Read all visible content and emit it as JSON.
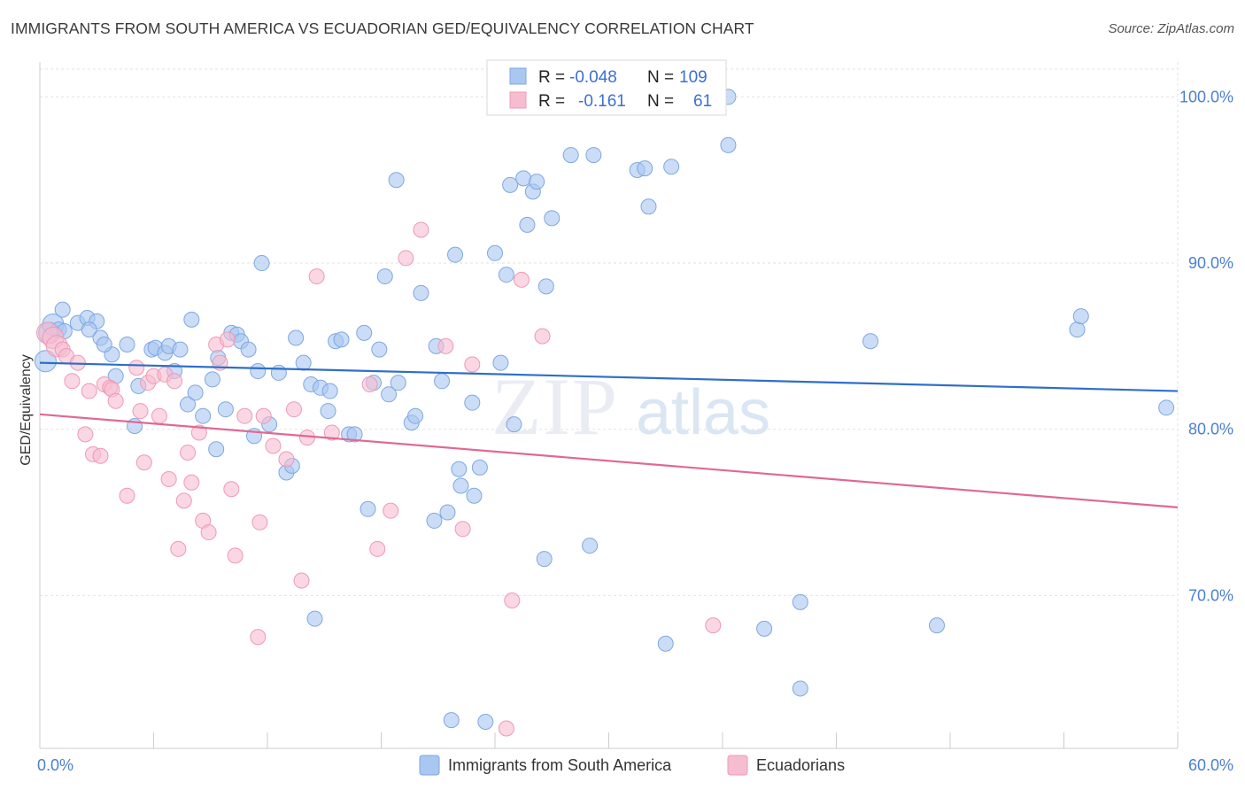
{
  "title": "IMMIGRANTS FROM SOUTH AMERICA VS ECUADORIAN GED/EQUIVALENCY CORRELATION CHART",
  "source": "Source: ZipAtlas.com",
  "watermark": {
    "zip": "ZIP",
    "atlas": "atlas"
  },
  "colors": {
    "blue": "#a9c7f0",
    "blue_stroke": "#7ea7e3",
    "blue_line": "#2f6ec9",
    "pink": "#f6bdd0",
    "pink_stroke": "#ee99b6",
    "pink_line": "#e06893",
    "tick_text": "#4a7fd0",
    "grid": "#e2e2e2"
  },
  "legend": {
    "rows": [
      {
        "r_label": "R =",
        "r_value": "-0.048",
        "n_label": "N =",
        "n_value": "109"
      },
      {
        "r_label": "R =",
        "r_value": "-0.161",
        "n_label": "N =",
        "n_value": "61"
      }
    ]
  },
  "chart_data": {
    "type": "scatter",
    "title": "IMMIGRANTS FROM SOUTH AMERICA VS ECUADORIAN GED/EQUIVALENCY CORRELATION CHART",
    "xlabel": "",
    "ylabel": "GED/Equivalency",
    "xlim": [
      0,
      60
    ],
    "ylim": [
      60.8,
      102.1
    ],
    "x_tick_labels": [
      "0.0%",
      "60.0%"
    ],
    "y_tick_labels": [
      "70.0%",
      "80.0%",
      "90.0%",
      "100.0%"
    ],
    "y_ticks": [
      70,
      80,
      90,
      100
    ],
    "grid": true,
    "legend_position": "top-center",
    "series": [
      {
        "name": "Immigrants from South America",
        "color": "#a9c7f0",
        "trend": {
          "x": [
            0,
            60
          ],
          "y": [
            84.0,
            82.3
          ]
        },
        "points": [
          [
            0.3,
            84.1
          ],
          [
            0.5,
            85.8
          ],
          [
            0.7,
            86.3
          ],
          [
            1.0,
            86.0
          ],
          [
            1.2,
            87.2
          ],
          [
            1.3,
            85.9
          ],
          [
            2.0,
            86.4
          ],
          [
            2.5,
            86.7
          ],
          [
            3.0,
            86.5
          ],
          [
            2.6,
            86.0
          ],
          [
            3.2,
            85.5
          ],
          [
            3.8,
            84.5
          ],
          [
            3.4,
            85.1
          ],
          [
            4.6,
            85.1
          ],
          [
            4.0,
            83.2
          ],
          [
            5.2,
            82.6
          ],
          [
            5.0,
            80.2
          ],
          [
            5.9,
            84.8
          ],
          [
            6.1,
            84.9
          ],
          [
            6.6,
            84.6
          ],
          [
            6.8,
            85.0
          ],
          [
            7.4,
            84.8
          ],
          [
            7.1,
            83.5
          ],
          [
            7.8,
            81.5
          ],
          [
            8.0,
            86.6
          ],
          [
            8.2,
            82.2
          ],
          [
            8.6,
            80.8
          ],
          [
            9.1,
            83.0
          ],
          [
            9.3,
            78.8
          ],
          [
            9.4,
            84.3
          ],
          [
            9.8,
            81.2
          ],
          [
            10.1,
            85.8
          ],
          [
            10.4,
            85.7
          ],
          [
            10.6,
            85.3
          ],
          [
            11.0,
            84.8
          ],
          [
            11.3,
            79.6
          ],
          [
            11.5,
            83.5
          ],
          [
            11.7,
            90.0
          ],
          [
            12.1,
            80.3
          ],
          [
            12.6,
            83.4
          ],
          [
            13.0,
            77.4
          ],
          [
            13.3,
            77.8
          ],
          [
            13.5,
            85.5
          ],
          [
            13.9,
            84.0
          ],
          [
            14.3,
            82.7
          ],
          [
            14.5,
            68.6
          ],
          [
            14.8,
            82.5
          ],
          [
            15.2,
            81.1
          ],
          [
            15.3,
            82.3
          ],
          [
            15.6,
            85.3
          ],
          [
            15.9,
            85.4
          ],
          [
            16.3,
            79.7
          ],
          [
            16.6,
            79.7
          ],
          [
            17.1,
            85.8
          ],
          [
            17.3,
            75.2
          ],
          [
            17.6,
            82.8
          ],
          [
            17.9,
            84.8
          ],
          [
            18.2,
            89.2
          ],
          [
            18.4,
            82.1
          ],
          [
            18.8,
            95.0
          ],
          [
            18.9,
            82.8
          ],
          [
            19.6,
            80.4
          ],
          [
            19.8,
            80.8
          ],
          [
            20.1,
            88.2
          ],
          [
            20.8,
            74.5
          ],
          [
            20.9,
            85.0
          ],
          [
            21.2,
            82.9
          ],
          [
            21.5,
            75.0
          ],
          [
            21.7,
            62.5
          ],
          [
            21.9,
            90.5
          ],
          [
            22.1,
            77.6
          ],
          [
            22.2,
            76.6
          ],
          [
            22.8,
            81.6
          ],
          [
            22.9,
            76.0
          ],
          [
            23.2,
            77.7
          ],
          [
            23.5,
            62.4
          ],
          [
            24.0,
            90.6
          ],
          [
            24.3,
            84.0
          ],
          [
            24.6,
            89.3
          ],
          [
            24.8,
            94.7
          ],
          [
            25.0,
            80.3
          ],
          [
            25.5,
            95.1
          ],
          [
            25.7,
            92.3
          ],
          [
            26.0,
            94.3
          ],
          [
            26.2,
            94.9
          ],
          [
            26.6,
            72.2
          ],
          [
            26.7,
            88.6
          ],
          [
            27.0,
            92.7
          ],
          [
            28.0,
            96.5
          ],
          [
            29.0,
            73.0
          ],
          [
            29.2,
            96.5
          ],
          [
            31.5,
            95.6
          ],
          [
            31.9,
            95.7
          ],
          [
            32.1,
            93.4
          ],
          [
            33.0,
            67.1
          ],
          [
            33.3,
            95.8
          ],
          [
            36.3,
            100.0
          ],
          [
            36.3,
            97.1
          ],
          [
            38.2,
            68.0
          ],
          [
            40.1,
            64.4
          ],
          [
            40.1,
            69.6
          ],
          [
            43.8,
            85.3
          ],
          [
            47.3,
            68.2
          ],
          [
            54.7,
            86.0
          ],
          [
            54.9,
            86.8
          ],
          [
            59.4,
            81.3
          ]
        ]
      },
      {
        "name": "Ecuadorians",
        "color": "#f6bdd0",
        "trend": {
          "x": [
            0,
            60
          ],
          "y": [
            80.9,
            75.3
          ]
        },
        "points": [
          [
            0.4,
            85.8
          ],
          [
            0.7,
            85.5
          ],
          [
            0.9,
            85.0
          ],
          [
            1.2,
            84.8
          ],
          [
            1.4,
            84.4
          ],
          [
            1.7,
            82.9
          ],
          [
            2.0,
            84.0
          ],
          [
            2.4,
            79.7
          ],
          [
            2.6,
            82.3
          ],
          [
            2.8,
            78.5
          ],
          [
            3.2,
            78.4
          ],
          [
            3.4,
            82.7
          ],
          [
            3.7,
            82.5
          ],
          [
            3.8,
            82.4
          ],
          [
            4.0,
            81.7
          ],
          [
            4.6,
            76.0
          ],
          [
            5.1,
            83.7
          ],
          [
            5.3,
            81.1
          ],
          [
            5.5,
            78.0
          ],
          [
            5.7,
            82.8
          ],
          [
            6.0,
            83.2
          ],
          [
            6.3,
            80.8
          ],
          [
            6.6,
            83.3
          ],
          [
            6.8,
            77.0
          ],
          [
            7.1,
            82.9
          ],
          [
            7.3,
            72.8
          ],
          [
            7.6,
            75.7
          ],
          [
            7.8,
            78.6
          ],
          [
            8.0,
            76.8
          ],
          [
            8.4,
            79.8
          ],
          [
            8.6,
            74.5
          ],
          [
            8.9,
            73.8
          ],
          [
            9.3,
            85.1
          ],
          [
            9.5,
            84.0
          ],
          [
            9.9,
            85.4
          ],
          [
            10.1,
            76.4
          ],
          [
            10.3,
            72.4
          ],
          [
            10.8,
            80.8
          ],
          [
            11.5,
            67.5
          ],
          [
            11.6,
            74.4
          ],
          [
            11.8,
            80.8
          ],
          [
            12.3,
            79.0
          ],
          [
            13.0,
            78.2
          ],
          [
            13.4,
            81.2
          ],
          [
            13.8,
            70.9
          ],
          [
            14.1,
            79.5
          ],
          [
            14.6,
            89.2
          ],
          [
            15.4,
            79.8
          ],
          [
            17.4,
            82.7
          ],
          [
            17.8,
            72.8
          ],
          [
            18.5,
            75.1
          ],
          [
            19.3,
            90.3
          ],
          [
            20.1,
            92.0
          ],
          [
            21.4,
            85.0
          ],
          [
            22.3,
            74.0
          ],
          [
            22.8,
            83.9
          ],
          [
            24.6,
            62.0
          ],
          [
            24.9,
            69.7
          ],
          [
            25.4,
            89.0
          ],
          [
            26.5,
            85.6
          ],
          [
            35.5,
            68.2
          ]
        ]
      }
    ]
  },
  "bottom_legend": [
    {
      "label": "Immigrants from South America"
    },
    {
      "label": "Ecuadorians"
    }
  ]
}
